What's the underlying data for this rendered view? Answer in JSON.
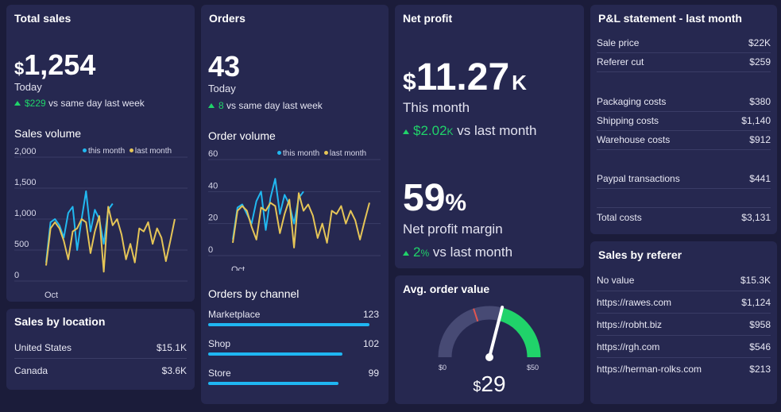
{
  "total_sales": {
    "title": "Total sales",
    "currency": "$",
    "value": "1,254",
    "period": "Today",
    "delta": "$229",
    "delta_text": "vs same day last week",
    "chart_title": "Sales volume",
    "legend_this": "this month",
    "legend_last": "last month"
  },
  "orders": {
    "title": "Orders",
    "value": "43",
    "period": "Today",
    "delta": "8",
    "delta_text": "vs same day last week",
    "chart_title": "Order volume",
    "legend_this": "this month",
    "legend_last": "last month"
  },
  "net_profit": {
    "title": "Net profit",
    "currency": "$",
    "value": "11.27",
    "unit": "K",
    "period": "This month",
    "delta": "$2.02",
    "delta_unit": "K",
    "delta_text": "vs last month",
    "margin_value": "59",
    "margin_unit": "%",
    "margin_label": "Net profit margin",
    "margin_delta": "2",
    "margin_delta_unit": "%",
    "margin_delta_text": "vs last month"
  },
  "pl_statement": {
    "title": "P&L statement - last month",
    "rows": [
      {
        "label": "Sale price",
        "value": "$22K"
      },
      {
        "label": "Referer cut",
        "value": "$259"
      },
      {
        "label": "Packaging costs",
        "value": "$380"
      },
      {
        "label": "Shipping costs",
        "value": "$1,140"
      },
      {
        "label": "Warehouse costs",
        "value": "$912"
      },
      {
        "label": "Paypal transactions",
        "value": "$441"
      },
      {
        "label": "Total costs",
        "value": "$3,131"
      }
    ]
  },
  "sales_by_location": {
    "title": "Sales by location",
    "rows": [
      {
        "label": "United States",
        "value": "$15.1K"
      },
      {
        "label": "Canada",
        "value": "$3.6K"
      }
    ]
  },
  "orders_by_channel": {
    "title": "Orders by channel",
    "rows": [
      {
        "label": "Marketplace",
        "value": "123"
      },
      {
        "label": "Shop",
        "value": "102"
      },
      {
        "label": "Store",
        "value": "99"
      }
    ]
  },
  "avg_order_value": {
    "title": "Avg. order value",
    "currency": "$",
    "value": "29",
    "min_label": "$0",
    "max_label": "$50"
  },
  "sales_by_referer": {
    "title": "Sales by referer",
    "rows": [
      {
        "label": "No value",
        "value": "$15.3K"
      },
      {
        "label": "https://rawes.com",
        "value": "$1,124"
      },
      {
        "label": "https://robht.biz",
        "value": "$958"
      },
      {
        "label": "https://rgh.com",
        "value": "$546"
      },
      {
        "label": "https://herman-rolks.com",
        "value": "$213"
      }
    ]
  },
  "colors": {
    "background": "#1b1c3a",
    "card": "#262850",
    "this_month": "#21b8f0",
    "last_month": "#e5c557",
    "positive": "#20d36a",
    "gauge_track": "#474a74",
    "gauge_target": "#e2554f"
  },
  "chart_data": [
    {
      "type": "line",
      "id": "sales-volume",
      "title": "Sales volume",
      "x_tick_labels": [
        "Oct"
      ],
      "y_ticks": [
        "0",
        "500",
        "1,000",
        "1,500",
        "2,000"
      ],
      "ylim": [
        0,
        2000
      ],
      "series": [
        {
          "name": "this month",
          "color": "#21b8f0",
          "values": [
            300,
            950,
            1000,
            900,
            700,
            1100,
            1200,
            500,
            1000,
            1450,
            800,
            1150,
            1000,
            600,
            1150,
            1250
          ]
        },
        {
          "name": "last month",
          "color": "#e5c557",
          "values": [
            250,
            850,
            950,
            850,
            650,
            350,
            800,
            850,
            1000,
            950,
            450,
            800,
            1050,
            150,
            1200,
            900,
            1000,
            750,
            350,
            600,
            300,
            850,
            800,
            950,
            600,
            850,
            700,
            320,
            650,
            1000
          ]
        }
      ]
    },
    {
      "type": "line",
      "id": "order-volume",
      "title": "Order volume",
      "x_tick_labels": [
        "Oct"
      ],
      "y_ticks": [
        "0",
        "20",
        "40",
        "60"
      ],
      "ylim": [
        0,
        60
      ],
      "series": [
        {
          "name": "this month",
          "color": "#21b8f0",
          "values": [
            10,
            30,
            32,
            26,
            20,
            34,
            40,
            16,
            36,
            48,
            26,
            38,
            32,
            20,
            36,
            40
          ]
        },
        {
          "name": "last month",
          "color": "#e5c557",
          "values": [
            8,
            28,
            31,
            28,
            18,
            10,
            30,
            28,
            33,
            31,
            14,
            26,
            35,
            5,
            39,
            28,
            32,
            25,
            11,
            20,
            8,
            28,
            26,
            31,
            20,
            28,
            22,
            10,
            22,
            33
          ]
        }
      ]
    },
    {
      "type": "bar",
      "id": "orders-by-channel",
      "title": "Orders by channel",
      "categories": [
        "Marketplace",
        "Shop",
        "Store"
      ],
      "values": [
        123,
        102,
        99
      ]
    },
    {
      "type": "gauge",
      "id": "avg-order-value",
      "title": "Avg. order value",
      "value": 29,
      "min": 0,
      "max": 50,
      "target": 20
    }
  ]
}
